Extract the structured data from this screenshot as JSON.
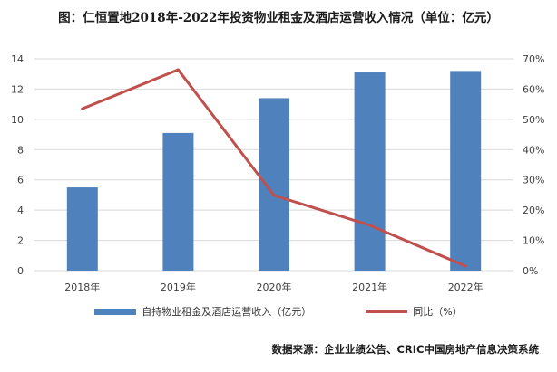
{
  "title": "图：仁恒置地2018年-2022年投资物业租金及酒店运营收入情况（单位：亿元）",
  "source": "数据来源：企业业绩公告、CRIC中国房地产信息决策系统",
  "colors": {
    "bar": "#4f81bd",
    "line": "#c0504d",
    "grid": "#d9d9d9",
    "axis_text": "#404040"
  },
  "chart_data": {
    "type": "bar",
    "title": "图：仁恒置地2018年-2022年投资物业租金及酒店运营收入情况（单位：亿元）",
    "categories": [
      "2018年",
      "2019年",
      "2020年",
      "2021年",
      "2022年"
    ],
    "y_ticks": [
      "0",
      "2",
      "4",
      "6",
      "8",
      "10",
      "12",
      "14"
    ],
    "y2_ticks": [
      "0%",
      "10%",
      "20%",
      "30%",
      "40%",
      "50%",
      "60%",
      "70%"
    ],
    "ylim": [
      0,
      14
    ],
    "y2lim": [
      0,
      70
    ],
    "grid": true,
    "legend_position": "bottom",
    "series": [
      {
        "name": "自持物业租金及酒店运营收入（亿元）",
        "type": "bar",
        "axis": "left",
        "values": [
          5.5,
          9.1,
          11.4,
          13.1,
          13.2
        ]
      },
      {
        "name": "同比（%）",
        "type": "line",
        "axis": "right",
        "values": [
          53.5,
          66.4,
          24.9,
          15.0,
          1.5
        ]
      }
    ]
  }
}
